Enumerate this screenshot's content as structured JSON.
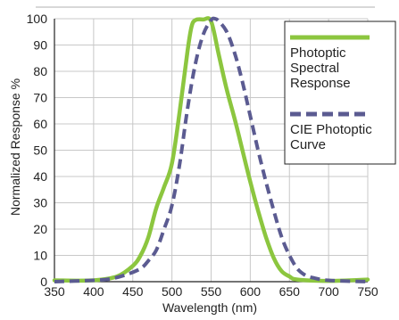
{
  "chart_data": {
    "type": "line",
    "xlabel": "Wavelength (nm)",
    "ylabel": "Normalized Response %",
    "xlim": [
      350,
      750
    ],
    "ylim": [
      0,
      100
    ],
    "x_ticks": [
      "350",
      "400",
      "450",
      "500",
      "550",
      "600",
      "650",
      "700",
      "750"
    ],
    "y_ticks": [
      "0",
      "10",
      "20",
      "30",
      "40",
      "50",
      "60",
      "70",
      "80",
      "90",
      "100"
    ],
    "grid": true,
    "legend_position": "top-right",
    "legend": [
      {
        "lines": [
          "Photoptic",
          "Spectral",
          "Response"
        ]
      },
      {
        "lines": [
          "CIE Photoptic",
          "Curve"
        ]
      }
    ],
    "series": [
      {
        "name": "Photoptic Spectral Response",
        "color": "#8cc63f",
        "style": "solid",
        "points": [
          [
            350,
            0.5
          ],
          [
            400,
            0.5
          ],
          [
            430,
            2
          ],
          [
            450,
            6
          ],
          [
            460,
            10
          ],
          [
            470,
            17
          ],
          [
            480,
            28
          ],
          [
            490,
            36
          ],
          [
            500,
            45
          ],
          [
            510,
            65
          ],
          [
            520,
            88
          ],
          [
            525,
            97
          ],
          [
            530,
            99.5
          ],
          [
            540,
            99.7
          ],
          [
            550,
            99
          ],
          [
            560,
            86
          ],
          [
            570,
            73
          ],
          [
            580,
            62
          ],
          [
            590,
            50
          ],
          [
            600,
            38
          ],
          [
            610,
            27
          ],
          [
            620,
            17
          ],
          [
            630,
            9
          ],
          [
            640,
            4
          ],
          [
            650,
            2
          ],
          [
            660,
            0.8
          ],
          [
            700,
            0.3
          ],
          [
            750,
            0.8
          ]
        ]
      },
      {
        "name": "CIE Photoptic Curve",
        "color": "#5b5b91",
        "style": "dashed",
        "points": [
          [
            350,
            0
          ],
          [
            400,
            0.5
          ],
          [
            420,
            1
          ],
          [
            440,
            2.5
          ],
          [
            460,
            5
          ],
          [
            470,
            8
          ],
          [
            480,
            12
          ],
          [
            490,
            20
          ],
          [
            500,
            29
          ],
          [
            510,
            45
          ],
          [
            520,
            66
          ],
          [
            530,
            83
          ],
          [
            540,
            94
          ],
          [
            550,
            99.5
          ],
          [
            555,
            100
          ],
          [
            560,
            99
          ],
          [
            570,
            95
          ],
          [
            580,
            87
          ],
          [
            590,
            76
          ],
          [
            600,
            63
          ],
          [
            610,
            50
          ],
          [
            620,
            38
          ],
          [
            630,
            27
          ],
          [
            640,
            17
          ],
          [
            650,
            10
          ],
          [
            660,
            5
          ],
          [
            670,
            2.5
          ],
          [
            680,
            1.5
          ],
          [
            700,
            0.5
          ],
          [
            750,
            0
          ]
        ]
      }
    ]
  }
}
